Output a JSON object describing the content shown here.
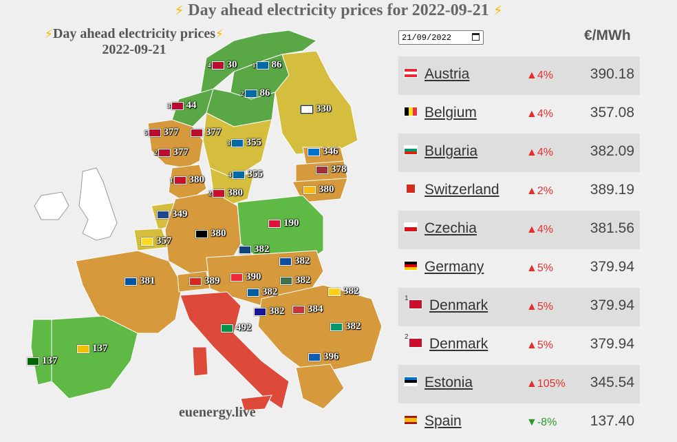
{
  "header": {
    "bolt": "⚡",
    "title": "Day ahead electricity prices for 2022-09-21"
  },
  "map": {
    "title_line1": "Day ahead electricity prices",
    "title_line2": "2022-09-21",
    "watermark": "euenergy.live",
    "labels": [
      {
        "sup": "4",
        "value": "30"
      },
      {
        "sup": "1",
        "value": "86"
      },
      {
        "sup": "2",
        "value": "86"
      },
      {
        "sup": "3",
        "value": "44"
      },
      {
        "sup": "",
        "value": "330"
      },
      {
        "sup": "5",
        "value": "377"
      },
      {
        "sup": "",
        "value": "377"
      },
      {
        "sup": "2",
        "value": "377"
      },
      {
        "sup": "3",
        "value": "355"
      },
      {
        "sup": "",
        "value": "346"
      },
      {
        "sup": "4",
        "value": "355"
      },
      {
        "sup": "",
        "value": "378"
      },
      {
        "sup": "1",
        "value": "380"
      },
      {
        "sup": "2",
        "value": "380"
      },
      {
        "sup": "",
        "value": "380"
      },
      {
        "sup": "",
        "value": "349"
      },
      {
        "sup": "",
        "value": "190"
      },
      {
        "sup": "",
        "value": "380"
      },
      {
        "sup": "",
        "value": "357"
      },
      {
        "sup": "",
        "value": "382"
      },
      {
        "sup": "",
        "value": "382"
      },
      {
        "sup": "",
        "value": "381"
      },
      {
        "sup": "",
        "value": "389"
      },
      {
        "sup": "",
        "value": "390"
      },
      {
        "sup": "",
        "value": "382"
      },
      {
        "sup": "",
        "value": "382"
      },
      {
        "sup": "",
        "value": "382"
      },
      {
        "sup": "",
        "value": "382"
      },
      {
        "sup": "",
        "value": "384"
      },
      {
        "sup": "",
        "value": "382"
      },
      {
        "sup": "",
        "value": "492"
      },
      {
        "sup": "",
        "value": "137"
      },
      {
        "sup": "",
        "value": "137"
      },
      {
        "sup": "",
        "value": "396"
      }
    ]
  },
  "controls": {
    "date_value": "21/09/2022",
    "unit": "€/MWh"
  },
  "table": [
    {
      "sup": "",
      "name": "Austria",
      "change": "▲4%",
      "dir": "up",
      "price": "390.18"
    },
    {
      "sup": "",
      "name": "Belgium",
      "change": "▲4%",
      "dir": "up",
      "price": "357.08"
    },
    {
      "sup": "",
      "name": "Bulgaria",
      "change": "▲4%",
      "dir": "up",
      "price": "382.09"
    },
    {
      "sup": "",
      "name": "Switzerland",
      "change": "▲2%",
      "dir": "up",
      "price": "389.19"
    },
    {
      "sup": "",
      "name": "Czechia",
      "change": "▲4%",
      "dir": "up",
      "price": "381.56"
    },
    {
      "sup": "",
      "name": "Germany",
      "change": "▲5%",
      "dir": "up",
      "price": "379.94"
    },
    {
      "sup": "1",
      "name": "Denmark",
      "change": "▲5%",
      "dir": "up",
      "price": "379.94"
    },
    {
      "sup": "2",
      "name": "Denmark",
      "change": "▲5%",
      "dir": "up",
      "price": "379.94"
    },
    {
      "sup": "",
      "name": "Estonia",
      "change": "▲105%",
      "dir": "up",
      "price": "345.54"
    },
    {
      "sup": "",
      "name": "Spain",
      "change": "▼-8%",
      "dir": "down",
      "price": "137.40"
    }
  ]
}
